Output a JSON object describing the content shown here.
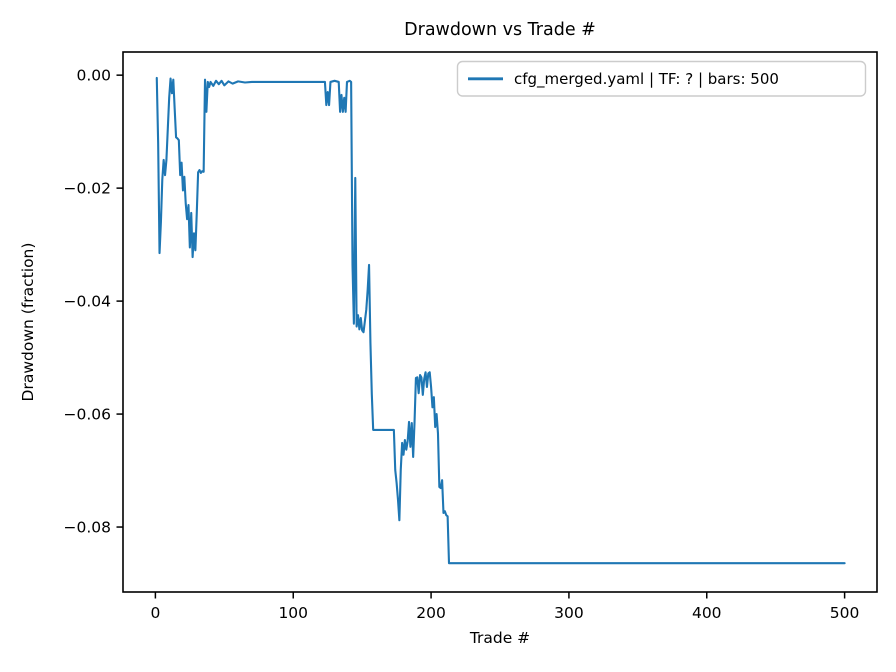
{
  "figure": {
    "title": "Drawdown vs Trade #",
    "xlabel": "Trade #",
    "ylabel": "Drawdown (fraction)",
    "legend": {
      "label": "cfg_merged.yaml | TF: ? | bars: 500",
      "line_color": "#1f77b4",
      "border_color": "#cccccc",
      "background": "#ffffff",
      "position": "upper right"
    }
  },
  "chart_data": {
    "type": "line",
    "title": "Drawdown vs Trade #",
    "xlabel": "Trade #",
    "ylabel": "Drawdown (fraction)",
    "grid": false,
    "legend_position": "upper right",
    "line_color": "#1f77b4",
    "xlim": [
      -23.5,
      523.5
    ],
    "ylim": [
      -0.0915,
      0.0041
    ],
    "xticks": [
      0,
      100,
      200,
      300,
      400,
      500
    ],
    "xtick_labels": [
      "0",
      "100",
      "200",
      "300",
      "400",
      "500"
    ],
    "yticks": [
      0.0,
      -0.02,
      -0.04,
      -0.06,
      -0.08
    ],
    "ytick_labels": [
      "0.00",
      "−0.02",
      "−0.04",
      "−0.06",
      "−0.08"
    ],
    "series": [
      {
        "name": "cfg_merged.yaml | TF: ? | bars: 500",
        "points": [
          [
            1,
            -0.0005
          ],
          [
            2,
            -0.012
          ],
          [
            3,
            -0.0315
          ],
          [
            4,
            -0.026
          ],
          [
            5,
            -0.0185
          ],
          [
            6,
            -0.015
          ],
          [
            7,
            -0.0177
          ],
          [
            8,
            -0.015
          ],
          [
            9,
            -0.0095
          ],
          [
            10,
            -0.004
          ],
          [
            11,
            -0.0006
          ],
          [
            12,
            -0.0032
          ],
          [
            13,
            -0.0008
          ],
          [
            14,
            -0.006
          ],
          [
            15,
            -0.011
          ],
          [
            16,
            -0.0112
          ],
          [
            17,
            -0.0115
          ],
          [
            18,
            -0.0177
          ],
          [
            19,
            -0.0155
          ],
          [
            20,
            -0.0204
          ],
          [
            21,
            -0.018
          ],
          [
            22,
            -0.0227
          ],
          [
            23,
            -0.0255
          ],
          [
            24,
            -0.023
          ],
          [
            25,
            -0.0305
          ],
          [
            26,
            -0.0244
          ],
          [
            27,
            -0.0322
          ],
          [
            28,
            -0.028
          ],
          [
            29,
            -0.031
          ],
          [
            30,
            -0.0245
          ],
          [
            31,
            -0.0172
          ],
          [
            32,
            -0.0168
          ],
          [
            33,
            -0.0173
          ],
          [
            34,
            -0.017
          ],
          [
            35,
            -0.0171
          ],
          [
            36,
            -0.0008
          ],
          [
            37,
            -0.0065
          ],
          [
            38,
            -0.0012
          ],
          [
            39,
            -0.0021
          ],
          [
            40,
            -0.0012
          ],
          [
            42,
            -0.0019
          ],
          [
            44,
            -0.001
          ],
          [
            46,
            -0.0016
          ],
          [
            48,
            -0.001
          ],
          [
            50,
            -0.0018
          ],
          [
            53,
            -0.0011
          ],
          [
            56,
            -0.0015
          ],
          [
            60,
            -0.0011
          ],
          [
            65,
            -0.0013
          ],
          [
            70,
            -0.0012
          ],
          [
            80,
            -0.0012
          ],
          [
            90,
            -0.0012
          ],
          [
            100,
            -0.0012
          ],
          [
            110,
            -0.0012
          ],
          [
            120,
            -0.0012
          ],
          [
            123,
            -0.0012
          ],
          [
            124,
            -0.0053
          ],
          [
            125,
            -0.003
          ],
          [
            126,
            -0.0053
          ],
          [
            127,
            -0.0012
          ],
          [
            130,
            -0.001
          ],
          [
            133,
            -0.0012
          ],
          [
            134,
            -0.0065
          ],
          [
            135,
            -0.0035
          ],
          [
            136,
            -0.0065
          ],
          [
            137,
            -0.004
          ],
          [
            138,
            -0.0065
          ],
          [
            139,
            -0.0012
          ],
          [
            141,
            -0.001
          ],
          [
            142,
            -0.0012
          ],
          [
            143,
            -0.0336
          ],
          [
            144,
            -0.044
          ],
          [
            145,
            -0.0182
          ],
          [
            146,
            -0.0445
          ],
          [
            147,
            -0.0425
          ],
          [
            148,
            -0.045
          ],
          [
            149,
            -0.043
          ],
          [
            150,
            -0.0452
          ],
          [
            151,
            -0.0455
          ],
          [
            152,
            -0.0435
          ],
          [
            153,
            -0.0415
          ],
          [
            154,
            -0.038
          ],
          [
            155,
            -0.0336
          ],
          [
            156,
            -0.0474
          ],
          [
            157,
            -0.0565
          ],
          [
            158,
            -0.0628
          ],
          [
            160,
            -0.0628
          ],
          [
            164,
            -0.0628
          ],
          [
            168,
            -0.0628
          ],
          [
            172,
            -0.0628
          ],
          [
            173,
            -0.0628
          ],
          [
            174,
            -0.0699
          ],
          [
            175,
            -0.0722
          ],
          [
            176,
            -0.0752
          ],
          [
            177,
            -0.0788
          ],
          [
            178,
            -0.0699
          ],
          [
            179,
            -0.0651
          ],
          [
            180,
            -0.0672
          ],
          [
            181,
            -0.0646
          ],
          [
            182,
            -0.0663
          ],
          [
            183,
            -0.0648
          ],
          [
            184,
            -0.0614
          ],
          [
            185,
            -0.0658
          ],
          [
            186,
            -0.0616
          ],
          [
            187,
            -0.0676
          ],
          [
            188,
            -0.0614
          ],
          [
            189,
            -0.0536
          ],
          [
            190,
            -0.0535
          ],
          [
            191,
            -0.0563
          ],
          [
            192,
            -0.0531
          ],
          [
            193,
            -0.0535
          ],
          [
            194,
            -0.0566
          ],
          [
            195,
            -0.0538
          ],
          [
            196,
            -0.0526
          ],
          [
            197,
            -0.0552
          ],
          [
            198,
            -0.0528
          ],
          [
            199,
            -0.0526
          ],
          [
            200,
            -0.0552
          ],
          [
            201,
            -0.0588
          ],
          [
            202,
            -0.057
          ],
          [
            203,
            -0.0623
          ],
          [
            204,
            -0.06
          ],
          [
            205,
            -0.0634
          ],
          [
            206,
            -0.0729
          ],
          [
            207,
            -0.0731
          ],
          [
            208,
            -0.0717
          ],
          [
            209,
            -0.0775
          ],
          [
            210,
            -0.0772
          ],
          [
            211,
            -0.0779
          ],
          [
            212,
            -0.0781
          ],
          [
            213,
            -0.0864
          ],
          [
            220,
            -0.0864
          ],
          [
            250,
            -0.0864
          ],
          [
            300,
            -0.0864
          ],
          [
            350,
            -0.0864
          ],
          [
            400,
            -0.0864
          ],
          [
            450,
            -0.0864
          ],
          [
            500,
            -0.0864
          ]
        ]
      }
    ]
  }
}
